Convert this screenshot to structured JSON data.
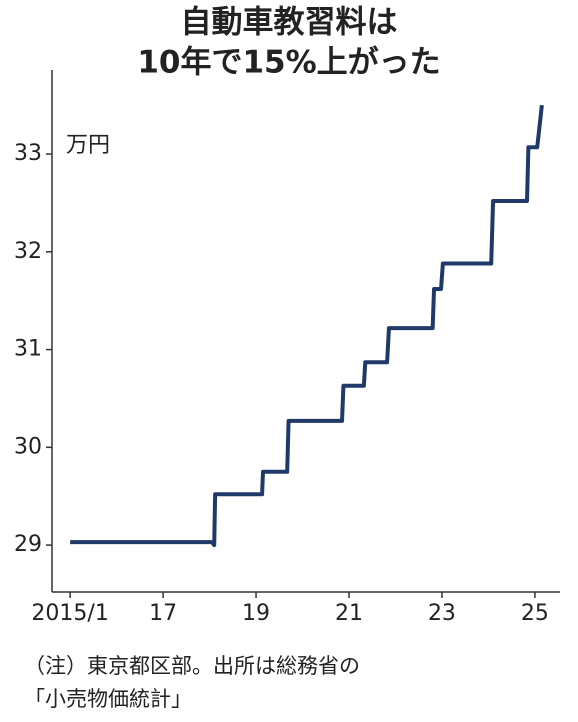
{
  "chart_data": {
    "type": "line",
    "title": [
      "自動車教習料は",
      "10年で15%上がった"
    ],
    "y_unit": "万円",
    "notes": [
      "（注）東京都区部。出所は総務省の",
      "「小売物価統計」"
    ],
    "x": [
      2015.0,
      2018.05,
      2018.1,
      2018.12,
      2019.13,
      2019.15,
      2019.67,
      2019.7,
      2020.85,
      2020.88,
      2021.32,
      2021.35,
      2021.82,
      2021.86,
      2022.8,
      2022.83,
      2022.98,
      2023.02,
      2024.06,
      2024.1,
      2024.83,
      2024.86,
      2025.05,
      2025.15
    ],
    "series": [
      {
        "color": "#1f3a68",
        "values": [
          29.03,
          29.03,
          29.0,
          29.52,
          29.52,
          29.75,
          29.75,
          30.27,
          30.27,
          30.63,
          30.63,
          30.87,
          30.87,
          31.22,
          31.22,
          31.62,
          31.62,
          31.88,
          31.88,
          32.52,
          32.52,
          33.07,
          33.07,
          33.5
        ]
      }
    ],
    "xlim": [
      2014.61,
      2025.54
    ],
    "ylim": [
      28.52,
      33.86
    ],
    "xticks": [
      {
        "value": 2015,
        "label": "2015/1"
      },
      {
        "value": 2017,
        "label": "17"
      },
      {
        "value": 2019,
        "label": "19"
      },
      {
        "value": 2021,
        "label": "21"
      },
      {
        "value": 2023,
        "label": "23"
      },
      {
        "value": 2025,
        "label": "25"
      }
    ],
    "yticks": [
      29,
      30,
      31,
      32,
      33
    ]
  }
}
